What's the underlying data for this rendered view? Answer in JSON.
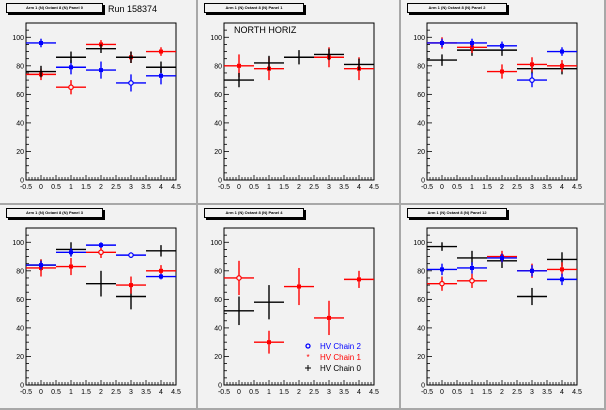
{
  "canvas_title": "Run 158374",
  "legend": {
    "entries": [
      {
        "label": "HV Chain 2",
        "color": "#0000ff",
        "marker": "open-circle"
      },
      {
        "label": "HV Chain 1",
        "color": "#ff0000",
        "marker": "star"
      },
      {
        "label": "HV Chain 0",
        "color": "#000000",
        "marker": "plus"
      }
    ]
  },
  "chart_data": [
    {
      "type": "scatter",
      "title": "Arm 1 (N) Octant 8 (N) Panel 0",
      "annotation": "Run 158374",
      "xlim": [
        -0.5,
        4.5
      ],
      "ylim": [
        0,
        110
      ],
      "xticks": [
        "-0.5",
        "0",
        "0.5",
        "1",
        "1.5",
        "2",
        "2.5",
        "3",
        "3.5",
        "4",
        "4.5"
      ],
      "yticks": [
        "0",
        "20",
        "40",
        "60",
        "80",
        "100"
      ],
      "series": [
        {
          "name": "HV Chain 2",
          "color": "#0000ff",
          "x": [
            0,
            1,
            2,
            3,
            4
          ],
          "y": [
            96,
            79,
            77,
            68,
            73
          ],
          "err": [
            3,
            5,
            6,
            6,
            6
          ],
          "open": [
            false,
            false,
            false,
            true,
            false
          ]
        },
        {
          "name": "HV Chain 1",
          "color": "#ff0000",
          "x": [
            0,
            1,
            2,
            3,
            4
          ],
          "y": [
            74,
            65,
            95,
            86,
            90
          ],
          "err": [
            4,
            5,
            3,
            4,
            3
          ],
          "open": [
            false,
            true,
            false,
            false,
            false
          ]
        },
        {
          "name": "HV Chain 0",
          "color": "#000000",
          "x": [
            0,
            1,
            2,
            3,
            4
          ],
          "y": [
            76,
            86,
            92,
            86,
            79
          ],
          "err": [
            0,
            4,
            3,
            0,
            4
          ],
          "open": [
            false,
            false,
            false,
            false,
            false
          ]
        }
      ]
    },
    {
      "type": "scatter",
      "title": "Arm 1 (N) Octant 8 (N) Panel 1",
      "annotation": "NORTH HORIZ",
      "xlim": [
        -0.5,
        4.5
      ],
      "ylim": [
        0,
        110
      ],
      "xticks": [
        "-0.5",
        "0",
        "0.5",
        "1",
        "1.5",
        "2",
        "2.5",
        "3",
        "3.5",
        "4",
        "4.5"
      ],
      "yticks": [
        "0",
        "20",
        "40",
        "60",
        "80",
        "100"
      ],
      "series": [
        {
          "name": "HV Chain 1",
          "color": "#ff0000",
          "x": [
            0,
            1,
            3,
            4
          ],
          "y": [
            80,
            78,
            86,
            78
          ],
          "err": [
            8,
            8,
            7,
            8
          ],
          "open": [
            false,
            false,
            false,
            false
          ]
        },
        {
          "name": "HV Chain 0",
          "color": "#000000",
          "x": [
            0,
            1,
            2,
            3,
            4
          ],
          "y": [
            70,
            82,
            86,
            88,
            81
          ],
          "err": [
            5,
            5,
            5,
            0,
            0
          ],
          "open": [
            false,
            false,
            false,
            false,
            false
          ]
        }
      ]
    },
    {
      "type": "scatter",
      "title": "Arm 1 (N) Octant 8 (N) Panel 2",
      "annotation": "",
      "xlim": [
        -0.5,
        4.5
      ],
      "ylim": [
        0,
        110
      ],
      "xticks": [
        "-0.5",
        "0",
        "0.5",
        "1",
        "1.5",
        "2",
        "2.5",
        "3",
        "3.5",
        "4",
        "4.5"
      ],
      "yticks": [
        "0",
        "20",
        "40",
        "60",
        "80",
        "100"
      ],
      "series": [
        {
          "name": "HV Chain 0",
          "color": "#000000",
          "x": [
            0,
            1,
            2,
            3,
            4
          ],
          "y": [
            84,
            91,
            91,
            78,
            78
          ],
          "err": [
            4,
            4,
            4,
            0,
            4
          ],
          "open": [
            false,
            false,
            false,
            false,
            false
          ]
        },
        {
          "name": "HV Chain 1",
          "color": "#ff0000",
          "x": [
            0,
            1,
            2,
            3,
            4
          ],
          "y": [
            96,
            93,
            76,
            81,
            80
          ],
          "err": [
            0,
            4,
            5,
            5,
            4
          ],
          "open": [
            false,
            false,
            false,
            false,
            false
          ]
        },
        {
          "name": "HV Chain 2",
          "color": "#0000ff",
          "x": [
            0,
            1,
            2,
            3,
            4
          ],
          "y": [
            96,
            96,
            94,
            70,
            90
          ],
          "err": [
            3,
            3,
            3,
            5,
            3
          ],
          "open": [
            false,
            false,
            false,
            true,
            false
          ]
        }
      ]
    },
    {
      "type": "scatter",
      "title": "Arm 1 (N) Octant 8 (N) Panel 3",
      "annotation": "",
      "xlim": [
        -0.5,
        4.5
      ],
      "ylim": [
        0,
        110
      ],
      "xticks": [
        "-0.5",
        "0",
        "0.5",
        "1",
        "1.5",
        "2",
        "2.5",
        "3",
        "3.5",
        "4",
        "4.5"
      ],
      "yticks": [
        "0",
        "20",
        "40",
        "60",
        "80",
        "100"
      ],
      "series": [
        {
          "name": "HV Chain 0",
          "color": "#000000",
          "x": [
            0,
            1,
            2,
            3,
            4
          ],
          "y": [
            84,
            95,
            71,
            62,
            94
          ],
          "err": [
            0,
            5,
            9,
            9,
            4
          ],
          "open": [
            false,
            false,
            false,
            false,
            false
          ]
        },
        {
          "name": "HV Chain 1",
          "color": "#ff0000",
          "x": [
            0,
            1,
            2,
            3,
            4
          ],
          "y": [
            82,
            83,
            93,
            70,
            80
          ],
          "err": [
            6,
            6,
            4,
            6,
            4
          ],
          "open": [
            false,
            false,
            true,
            false,
            false
          ]
        },
        {
          "name": "HV Chain 2",
          "color": "#0000ff",
          "x": [
            0,
            1,
            2,
            3,
            4
          ],
          "y": [
            84,
            93,
            98,
            91,
            76
          ],
          "err": [
            3,
            3,
            2,
            2,
            2
          ],
          "open": [
            false,
            false,
            false,
            true,
            false
          ]
        }
      ]
    },
    {
      "type": "scatter",
      "title": "Arm 1 (N) Octant 8 (N) Panel 4",
      "annotation": "",
      "xlim": [
        -0.5,
        4.5
      ],
      "ylim": [
        0,
        110
      ],
      "xticks": [
        "-0.5",
        "0",
        "0.5",
        "1",
        "1.5",
        "2",
        "2.5",
        "3",
        "3.5",
        "4",
        "4.5"
      ],
      "yticks": [
        "0",
        "20",
        "40",
        "60",
        "80",
        "100"
      ],
      "legend": true,
      "series": [
        {
          "name": "HV Chain 1",
          "color": "#ff0000",
          "x": [
            0,
            1,
            2,
            3,
            4
          ],
          "y": [
            75,
            30,
            69,
            47,
            74
          ],
          "err": [
            12,
            8,
            13,
            12,
            6
          ],
          "open": [
            true,
            false,
            false,
            false,
            false
          ]
        },
        {
          "name": "HV Chain 0",
          "color": "#000000",
          "x": [
            0,
            1
          ],
          "y": [
            52,
            58
          ],
          "err": [
            10,
            12
          ],
          "open": [
            false,
            false
          ]
        }
      ]
    },
    {
      "type": "scatter",
      "title": "Arm 1 (N) Octant 8 (N) Panel 12",
      "annotation": "",
      "xlim": [
        -0.5,
        4.5
      ],
      "ylim": [
        0,
        110
      ],
      "xticks": [
        "-0.5",
        "0",
        "0.5",
        "1",
        "1.5",
        "2",
        "2.5",
        "3",
        "3.5",
        "4",
        "4.5"
      ],
      "yticks": [
        "0",
        "20",
        "40",
        "60",
        "80",
        "100"
      ],
      "series": [
        {
          "name": "HV Chain 0",
          "color": "#000000",
          "x": [
            0,
            1,
            2,
            3,
            4
          ],
          "y": [
            97,
            89,
            87,
            62,
            88
          ],
          "err": [
            3,
            5,
            5,
            6,
            5
          ],
          "open": [
            false,
            false,
            false,
            false,
            false
          ]
        },
        {
          "name": "HV Chain 1",
          "color": "#ff0000",
          "x": [
            0,
            1,
            2,
            3,
            4
          ],
          "y": [
            71,
            73,
            90,
            80,
            81
          ],
          "err": [
            5,
            5,
            4,
            5,
            5
          ],
          "open": [
            true,
            true,
            false,
            false,
            false
          ]
        },
        {
          "name": "HV Chain 2",
          "color": "#0000ff",
          "x": [
            0,
            1,
            2,
            3,
            4
          ],
          "y": [
            81,
            82,
            89,
            80,
            74
          ],
          "err": [
            4,
            4,
            3,
            4,
            4
          ],
          "open": [
            false,
            false,
            false,
            false,
            false
          ]
        }
      ]
    }
  ]
}
